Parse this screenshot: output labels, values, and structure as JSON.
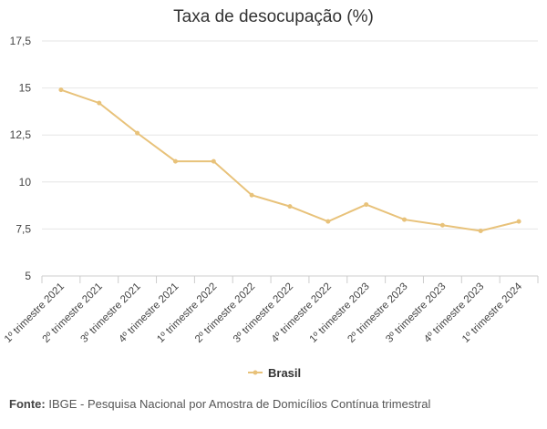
{
  "chart_data": {
    "type": "line",
    "title": "Taxa de desocupação (%)",
    "categories": [
      "1º trimestre 2021",
      "2º trimestre 2021",
      "3º trimestre 2021",
      "4º trimestre 2021",
      "1º trimestre 2022",
      "2º trimestre 2022",
      "3º trimestre 2022",
      "4º trimestre 2022",
      "1º trimestre 2023",
      "2º trimestre 2023",
      "3º trimestre 2023",
      "4º trimestre 2023",
      "1º trimestre 2024"
    ],
    "series": [
      {
        "name": "Brasil",
        "color": "#e8c27a",
        "values": [
          14.9,
          14.2,
          12.6,
          11.1,
          11.1,
          9.3,
          8.7,
          7.9,
          8.8,
          8.0,
          7.7,
          7.4,
          7.9
        ]
      }
    ],
    "ylim": [
      5,
      17.5
    ],
    "yticks": [
      5,
      7.5,
      10,
      12.5,
      15,
      17.5
    ],
    "ytick_labels": [
      "5",
      "7,5",
      "10",
      "12,5",
      "15",
      "17,5"
    ],
    "grid": true,
    "legend_position": "bottom-center"
  },
  "source": {
    "label": "Fonte:",
    "text": " IBGE - Pesquisa Nacional por Amostra de Domicílios Contínua trimestral"
  }
}
